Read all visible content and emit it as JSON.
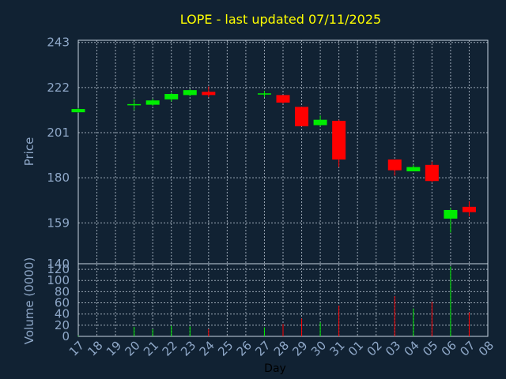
{
  "chart_data": {
    "type": "candlestick",
    "title": "LOPE - last updated 07/11/2025",
    "xlabel": "Day",
    "ylabel_price": "Price",
    "ylabel_volume": "Volume (0000)",
    "x_ticks": [
      "17",
      "18",
      "19",
      "20",
      "21",
      "22",
      "23",
      "24",
      "25",
      "26",
      "27",
      "28",
      "29",
      "30",
      "31",
      "01",
      "02",
      "03",
      "04",
      "05",
      "06",
      "07",
      "08"
    ],
    "price_ticks": [
      140,
      159,
      180,
      201,
      222,
      243
    ],
    "price_ylim": [
      140,
      244
    ],
    "volume_ticks": [
      0,
      20,
      40,
      60,
      80,
      100,
      120
    ],
    "volume_ylim": [
      0,
      130
    ],
    "up_color": "#00ee00",
    "down_color": "#ff0000",
    "candles": [
      {
        "day": "17",
        "open": 210.5,
        "close": 212.0,
        "high": 212.5,
        "low": 210.3,
        "volume": 1.5
      },
      {
        "day": "20",
        "open": 214.0,
        "close": 214.0,
        "high": 216.5,
        "low": 211.5,
        "volume": 17
      },
      {
        "day": "21",
        "open": 214.0,
        "close": 216.0,
        "high": 216.8,
        "low": 213.5,
        "volume": 13
      },
      {
        "day": "22",
        "open": 216.5,
        "close": 219.0,
        "high": 219.5,
        "low": 215.5,
        "volume": 19
      },
      {
        "day": "23",
        "open": 218.5,
        "close": 220.8,
        "high": 221.2,
        "low": 218.0,
        "volume": 18
      },
      {
        "day": "24",
        "open": 220.0,
        "close": 218.5,
        "high": 222.5,
        "low": 217.5,
        "volume": 13
      },
      {
        "day": "27",
        "open": 219.0,
        "close": 219.0,
        "high": 220.5,
        "low": 217.5,
        "volume": 16
      },
      {
        "day": "28",
        "open": 218.5,
        "close": 215.0,
        "high": 218.5,
        "low": 214.5,
        "volume": 22
      },
      {
        "day": "29",
        "open": 213.0,
        "close": 204.0,
        "high": 213.0,
        "low": 204.0,
        "volume": 32
      },
      {
        "day": "30",
        "open": 204.5,
        "close": 207.0,
        "high": 209.0,
        "low": 204.0,
        "volume": 25
      },
      {
        "day": "31",
        "open": 206.5,
        "close": 188.5,
        "high": 207.0,
        "low": 185.0,
        "volume": 55
      },
      {
        "day": "03",
        "open": 188.5,
        "close": 183.5,
        "high": 188.5,
        "low": 181.0,
        "volume": 72
      },
      {
        "day": "04",
        "open": 183.0,
        "close": 185.0,
        "high": 186.0,
        "low": 183.0,
        "volume": 50
      },
      {
        "day": "05",
        "open": 186.0,
        "close": 178.5,
        "high": 187.5,
        "low": 178.0,
        "volume": 62
      },
      {
        "day": "06",
        "open": 161.0,
        "close": 165.0,
        "high": 166.0,
        "low": 154.5,
        "volume": 125
      },
      {
        "day": "07",
        "open": 166.5,
        "close": 164.0,
        "high": 169.0,
        "low": 162.0,
        "volume": 43
      }
    ]
  }
}
